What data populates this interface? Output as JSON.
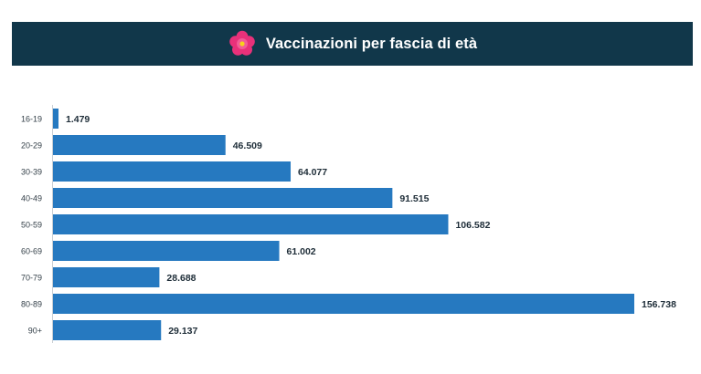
{
  "header": {
    "title": "Vaccinazioni per fascia di età",
    "background": "#11374a",
    "icon": "flower-icon",
    "icon_color": "#e8317a"
  },
  "chart_data": {
    "type": "bar",
    "orientation": "horizontal",
    "categories": [
      "16-19",
      "20-29",
      "30-39",
      "40-49",
      "50-59",
      "60-69",
      "70-79",
      "80-89",
      "90+"
    ],
    "values": [
      1479,
      46509,
      64077,
      91515,
      106582,
      61002,
      28688,
      156738,
      29137
    ],
    "value_labels": [
      "1.479",
      "46.509",
      "64.077",
      "91.515",
      "106.582",
      "61.002",
      "28.688",
      "156.738",
      "29.137"
    ],
    "bar_color": "#2679c0",
    "xlim": [
      0,
      156738
    ],
    "grid": false,
    "legend": "none"
  }
}
